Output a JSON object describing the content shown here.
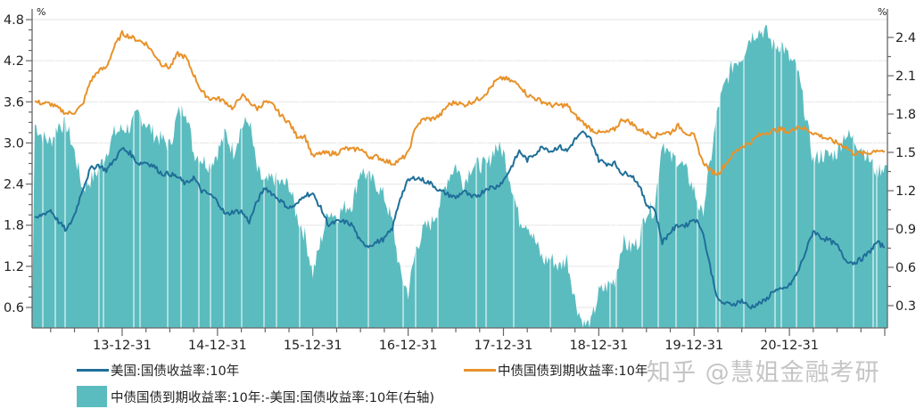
{
  "chart_data": {
    "type": "line+area",
    "title": "",
    "left_axis": {
      "unit": "%",
      "ticks": [
        "4.8",
        "4.2",
        "3.6",
        "3.0",
        "2.4",
        "1.8",
        "1.2",
        "0.6"
      ],
      "ylim": [
        0.3,
        4.9
      ]
    },
    "right_axis": {
      "unit": "%",
      "ticks": [
        "2.4",
        "2.1",
        "1.8",
        "1.5",
        "1.2",
        "0.9",
        "0.6",
        "0.3"
      ],
      "ylim": [
        0.15,
        2.45
      ]
    },
    "x_tick_labels": [
      "13-12-31",
      "14-12-31",
      "15-12-31",
      "16-12-31",
      "17-12-31",
      "18-12-31",
      "19-12-31",
      "20-12-31"
    ],
    "x_start": "2013-01",
    "x_end": "2021-08",
    "frequency": "monthly (approx. readings)",
    "legend_position": "bottom",
    "grid": "horizontal",
    "series": [
      {
        "name": "美国:国债收益率:10年",
        "axis": "left",
        "kind": "line",
        "color": "#1f6f99",
        "values": [
          1.88,
          1.96,
          2.02,
          1.85,
          1.72,
          1.95,
          2.32,
          2.62,
          2.68,
          2.6,
          2.75,
          2.92,
          2.85,
          2.7,
          2.72,
          2.66,
          2.55,
          2.55,
          2.5,
          2.4,
          2.5,
          2.3,
          2.25,
          2.15,
          1.95,
          2.0,
          2.0,
          1.85,
          2.15,
          2.35,
          2.25,
          2.15,
          2.05,
          2.1,
          2.25,
          2.25,
          2.05,
          1.8,
          1.85,
          1.85,
          1.8,
          1.55,
          1.5,
          1.55,
          1.6,
          1.75,
          2.2,
          2.45,
          2.5,
          2.45,
          2.4,
          2.3,
          2.25,
          2.2,
          2.3,
          2.2,
          2.25,
          2.35,
          2.35,
          2.45,
          2.65,
          2.88,
          2.75,
          2.85,
          2.95,
          2.88,
          2.95,
          2.88,
          3.05,
          3.15,
          3.05,
          2.75,
          2.7,
          2.7,
          2.55,
          2.55,
          2.4,
          2.1,
          2.05,
          1.55,
          1.7,
          1.8,
          1.8,
          1.9,
          1.75,
          1.2,
          0.7,
          0.65,
          0.65,
          0.7,
          0.6,
          0.65,
          0.7,
          0.85,
          0.85,
          0.92,
          1.1,
          1.4,
          1.72,
          1.62,
          1.58,
          1.5,
          1.3,
          1.25,
          1.3,
          1.4,
          1.55,
          1.48
        ]
      },
      {
        "name": "中债国债到期收益率:10年",
        "axis": "left",
        "kind": "line",
        "color": "#e8922a",
        "values": [
          3.6,
          3.58,
          3.57,
          3.5,
          3.43,
          3.45,
          3.55,
          3.9,
          4.05,
          4.1,
          4.4,
          4.6,
          4.55,
          4.5,
          4.45,
          4.3,
          4.15,
          4.1,
          4.3,
          4.25,
          4.0,
          3.75,
          3.65,
          3.65,
          3.6,
          3.5,
          3.7,
          3.6,
          3.5,
          3.6,
          3.55,
          3.4,
          3.3,
          3.1,
          3.1,
          2.8,
          2.85,
          2.85,
          2.85,
          2.92,
          2.9,
          2.92,
          2.8,
          2.8,
          2.75,
          2.7,
          2.75,
          2.85,
          3.25,
          3.35,
          3.35,
          3.4,
          3.55,
          3.6,
          3.55,
          3.6,
          3.65,
          3.75,
          3.9,
          3.95,
          3.9,
          3.85,
          3.7,
          3.65,
          3.6,
          3.55,
          3.55,
          3.55,
          3.4,
          3.3,
          3.2,
          3.15,
          3.15,
          3.2,
          3.35,
          3.3,
          3.2,
          3.15,
          3.1,
          3.15,
          3.15,
          3.25,
          3.15,
          3.1,
          2.75,
          2.6,
          2.55,
          2.7,
          2.85,
          2.95,
          3.0,
          3.1,
          3.15,
          3.18,
          3.2,
          3.15,
          3.25,
          3.2,
          3.15,
          3.1,
          3.05,
          3.0,
          2.95,
          2.85,
          2.85,
          2.85,
          2.9,
          2.88
        ]
      },
      {
        "name": "中债国债到期收益率:10年:-美国:国债收益率:10年(右轴)",
        "axis": "right",
        "kind": "area",
        "color": "#5bbcbf",
        "values": [
          1.72,
          1.62,
          1.58,
          1.72,
          1.71,
          1.5,
          1.22,
          1.28,
          1.36,
          1.5,
          1.65,
          1.68,
          1.7,
          1.8,
          1.73,
          1.64,
          1.6,
          1.55,
          1.8,
          1.85,
          1.5,
          1.45,
          1.4,
          1.5,
          1.65,
          1.5,
          1.7,
          1.75,
          1.35,
          1.25,
          1.3,
          1.25,
          1.25,
          1.0,
          0.85,
          0.55,
          0.8,
          1.05,
          1.0,
          1.07,
          1.1,
          1.37,
          1.3,
          1.25,
          1.15,
          0.95,
          0.55,
          0.4,
          0.75,
          0.9,
          0.95,
          1.1,
          1.3,
          1.4,
          1.25,
          1.4,
          1.4,
          1.4,
          1.55,
          1.5,
          1.25,
          0.97,
          0.95,
          0.8,
          0.65,
          0.67,
          0.6,
          0.67,
          0.35,
          0.15,
          0.15,
          0.4,
          0.45,
          0.5,
          0.8,
          0.75,
          0.8,
          1.05,
          1.05,
          1.6,
          1.45,
          1.45,
          1.35,
          1.2,
          1.0,
          1.4,
          1.85,
          2.05,
          2.2,
          2.25,
          2.4,
          2.45,
          2.45,
          2.33,
          2.35,
          2.23,
          2.15,
          1.8,
          1.43,
          1.48,
          1.47,
          1.5,
          1.65,
          1.6,
          1.55,
          1.45,
          1.35,
          1.4
        ]
      }
    ]
  },
  "axes": {
    "left_unit": "%",
    "right_unit": "%"
  },
  "legend": {
    "us_label": "美国:国债收益率:10年",
    "cn_label": "中债国债到期收益率:10年",
    "spread_label": "中债国债到期收益率:10年:-美国:国债收益率:10年(右轴)",
    "us_color": "#1f6f99",
    "cn_color": "#e8922a",
    "spread_color": "#5bbcbf"
  },
  "watermark": "知乎 @慧姐金融考研"
}
